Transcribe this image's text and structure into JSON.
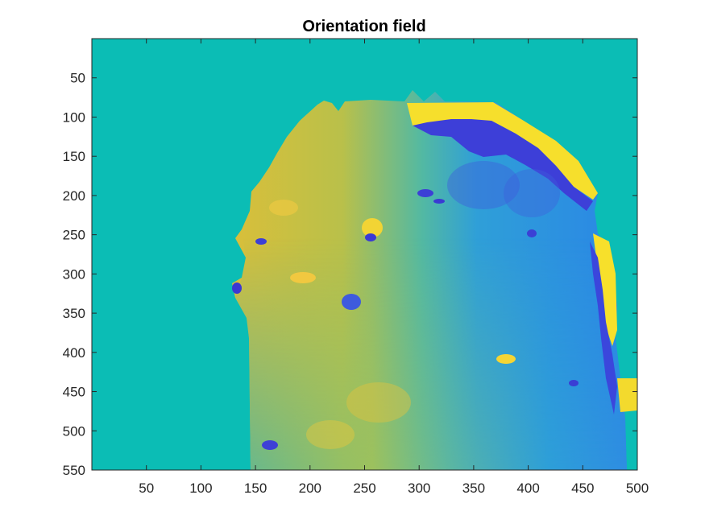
{
  "chart_data": {
    "type": "heatmap",
    "title": "Orientation field",
    "xlabel": "",
    "ylabel": "",
    "xlim": [
      0,
      500
    ],
    "ylim": [
      0,
      550
    ],
    "y_reversed": true,
    "xticks": [
      50,
      100,
      150,
      200,
      250,
      300,
      350,
      400,
      450,
      500
    ],
    "yticks": [
      50,
      100,
      150,
      200,
      250,
      300,
      350,
      400,
      450,
      500,
      550
    ],
    "colormap": "parula",
    "background_value_color": "#0bbdb5",
    "colors": {
      "background": "#0bbdb5",
      "left_region": "#d7bf3c",
      "right_region": "#2f8ce0",
      "negative_extreme": "#3a37d6",
      "positive_extreme": "#f9e52a",
      "mid_blend": "#4fb8a8"
    },
    "grid": false,
    "colorbar": false
  }
}
